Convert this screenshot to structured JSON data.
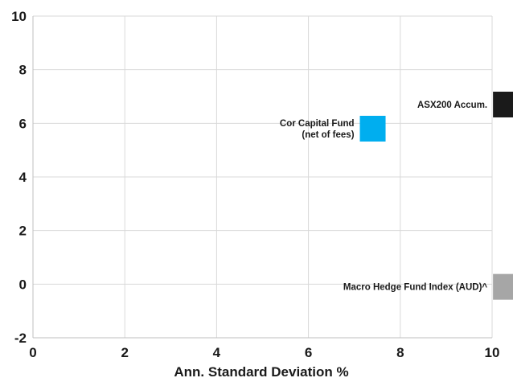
{
  "chart_data": {
    "type": "scatter",
    "title": "",
    "xlabel": "Ann. Standard Deviation %",
    "ylabel": "",
    "xlim": [
      0,
      10
    ],
    "ylim": [
      -2,
      10
    ],
    "x_ticks": [
      0,
      2,
      4,
      6,
      8,
      10
    ],
    "y_ticks": [
      -2,
      0,
      2,
      4,
      6,
      8,
      10
    ],
    "grid": true,
    "marker": "square",
    "points": [
      {
        "label_lines": [
          "Cor Capital Fund",
          "(net of fees)"
        ],
        "x": 7.4,
        "y": 5.8,
        "color": "#00aeef"
      },
      {
        "label_lines": [
          "ASX200 Accum."
        ],
        "x": 10.3,
        "y": 6.7,
        "color": "#1a1a1a"
      },
      {
        "label_lines": [
          "Macro Hedge Fund Index (AUD)^"
        ],
        "x": 10.3,
        "y": -0.1,
        "color": "#a6a6a6"
      }
    ]
  }
}
